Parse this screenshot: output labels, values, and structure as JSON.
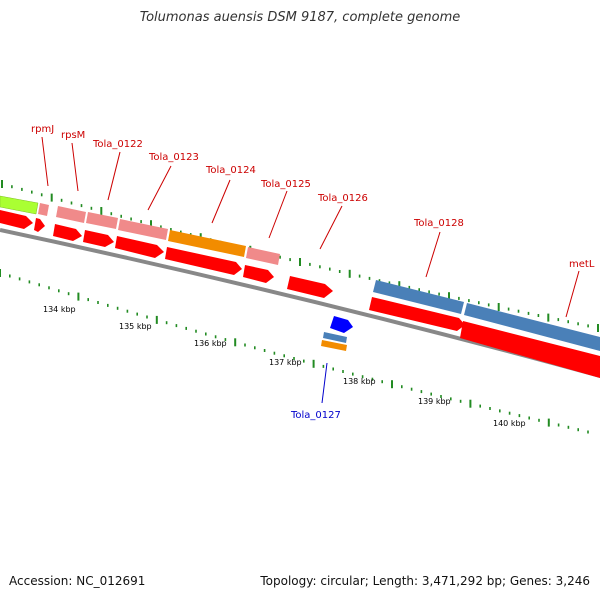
{
  "title": "Tolumonas auensis DSM 9187, complete genome",
  "footer": {
    "accession": "Accession: NC_012691",
    "summary": "Topology: circular; Length: 3,471,292 bp; Genes: 3,246"
  },
  "colors": {
    "cds_red": "#ff0000",
    "pink": "#f08a8a",
    "orange": "#f28c00",
    "lime": "#aaff33",
    "steel_blue": "#4a80b8",
    "blue": "#0000ff",
    "tick_green": "#228b22",
    "backbone": "#888888",
    "label_red": "#cc0000",
    "label_blue": "#0000cc"
  },
  "scale_labels": [
    "134 kbp",
    "135 kbp",
    "136 kbp",
    "137 kbp",
    "138 kbp",
    "139 kbp",
    "140 kbp"
  ],
  "gene_labels": [
    {
      "text": "rpmJ",
      "color": "#cc0000"
    },
    {
      "text": "rpsM",
      "color": "#cc0000"
    },
    {
      "text": "Tola_0122",
      "color": "#cc0000"
    },
    {
      "text": "Tola_0123",
      "color": "#cc0000"
    },
    {
      "text": "Tola_0124",
      "color": "#cc0000"
    },
    {
      "text": "Tola_0125",
      "color": "#cc0000"
    },
    {
      "text": "Tola_0126",
      "color": "#cc0000"
    },
    {
      "text": "Tola_0128",
      "color": "#cc0000"
    },
    {
      "text": "metL",
      "color": "#cc0000"
    },
    {
      "text": "Tola_0127",
      "color": "#0000cc"
    }
  ]
}
